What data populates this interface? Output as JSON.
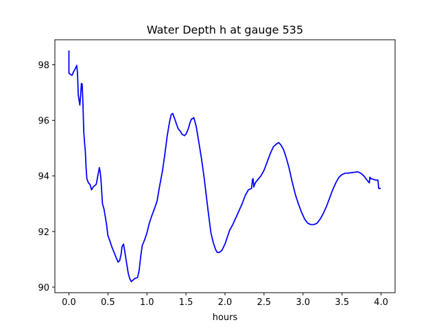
{
  "chart_data": {
    "type": "line",
    "title": "Water Depth h at gauge 535",
    "xlabel": "hours",
    "ylabel": "",
    "xlim": [
      -0.18,
      4.18
    ],
    "ylim": [
      89.8,
      98.9
    ],
    "xticks": [
      0.0,
      0.5,
      1.0,
      1.5,
      2.0,
      2.5,
      3.0,
      3.5,
      4.0
    ],
    "xtick_labels": [
      "0.0",
      "0.5",
      "1.0",
      "1.5",
      "2.0",
      "2.5",
      "3.0",
      "3.5",
      "4.0"
    ],
    "yticks": [
      90,
      92,
      94,
      96,
      98
    ],
    "ytick_labels": [
      "90",
      "92",
      "94",
      "96",
      "98"
    ],
    "grid": false,
    "series": [
      {
        "color": "#0000ff",
        "x": [
          0.0,
          0.0,
          0.005,
          0.04,
          0.06,
          0.08,
          0.1,
          0.11,
          0.12,
          0.14,
          0.15,
          0.16,
          0.17,
          0.18,
          0.19,
          0.2,
          0.21,
          0.22,
          0.23,
          0.25,
          0.27,
          0.29,
          0.31,
          0.33,
          0.35,
          0.37,
          0.39,
          0.4,
          0.41,
          0.43,
          0.44,
          0.45,
          0.48,
          0.5,
          0.52,
          0.55,
          0.6,
          0.63,
          0.65,
          0.67,
          0.68,
          0.7,
          0.72,
          0.74,
          0.76,
          0.78,
          0.8,
          0.82,
          0.84,
          0.88,
          0.9,
          0.92,
          0.94,
          0.97,
          1.0,
          1.03,
          1.06,
          1.1,
          1.13,
          1.16,
          1.2,
          1.23,
          1.26,
          1.29,
          1.31,
          1.33,
          1.35,
          1.38,
          1.4,
          1.43,
          1.45,
          1.48,
          1.5,
          1.53,
          1.55,
          1.57,
          1.58,
          1.6,
          1.63,
          1.66,
          1.7,
          1.73,
          1.76,
          1.79,
          1.82,
          1.85,
          1.88,
          1.9,
          1.93,
          1.96,
          2.0,
          2.03,
          2.06,
          2.1,
          2.14,
          2.18,
          2.22,
          2.26,
          2.3,
          2.34,
          2.35,
          2.35,
          2.36,
          2.37,
          2.38,
          2.4,
          2.43,
          2.46,
          2.5,
          2.54,
          2.58,
          2.62,
          2.66,
          2.69,
          2.72,
          2.75,
          2.78,
          2.82,
          2.86,
          2.9,
          2.94,
          2.98,
          3.02,
          3.06,
          3.1,
          3.14,
          3.18,
          3.22,
          3.26,
          3.3,
          3.34,
          3.38,
          3.42,
          3.46,
          3.5,
          3.54,
          3.58,
          3.62,
          3.66,
          3.7,
          3.74,
          3.78,
          3.82,
          3.85,
          3.855,
          3.86,
          3.87,
          3.9,
          3.93,
          3.95,
          3.96,
          3.97,
          3.98,
          3.99
        ],
        "y": [
          98.5,
          97.7,
          97.68,
          97.62,
          97.75,
          97.85,
          97.98,
          97.7,
          96.9,
          96.55,
          96.9,
          97.33,
          97.3,
          96.6,
          95.6,
          95.2,
          94.9,
          94.3,
          93.9,
          93.75,
          93.7,
          93.5,
          93.6,
          93.65,
          93.7,
          94.0,
          94.3,
          94.15,
          93.9,
          93.0,
          92.9,
          92.8,
          92.3,
          91.85,
          91.7,
          91.45,
          91.1,
          90.9,
          90.95,
          91.2,
          91.45,
          91.55,
          91.2,
          90.85,
          90.5,
          90.3,
          90.2,
          90.25,
          90.3,
          90.35,
          90.6,
          91.1,
          91.5,
          91.7,
          91.95,
          92.3,
          92.55,
          92.85,
          93.1,
          93.6,
          94.2,
          94.8,
          95.45,
          95.95,
          96.2,
          96.25,
          96.1,
          95.85,
          95.7,
          95.6,
          95.5,
          95.45,
          95.5,
          95.7,
          95.9,
          96.05,
          96.05,
          96.1,
          95.8,
          95.3,
          94.6,
          94.0,
          93.3,
          92.6,
          91.95,
          91.6,
          91.35,
          91.25,
          91.25,
          91.32,
          91.55,
          91.8,
          92.05,
          92.25,
          92.5,
          92.75,
          93.0,
          93.3,
          93.5,
          93.55,
          93.8,
          93.85,
          93.9,
          93.6,
          93.7,
          93.8,
          93.9,
          94.0,
          94.2,
          94.5,
          94.8,
          95.05,
          95.15,
          95.2,
          95.1,
          94.95,
          94.7,
          94.3,
          93.8,
          93.35,
          93.0,
          92.7,
          92.45,
          92.3,
          92.25,
          92.25,
          92.3,
          92.45,
          92.65,
          92.9,
          93.2,
          93.5,
          93.75,
          93.95,
          94.05,
          94.1,
          94.1,
          94.12,
          94.13,
          94.15,
          94.1,
          94.0,
          93.85,
          93.75,
          93.95,
          93.95,
          93.9,
          93.88,
          93.85,
          93.85,
          93.85,
          93.55,
          93.55,
          93.55
        ]
      }
    ]
  }
}
